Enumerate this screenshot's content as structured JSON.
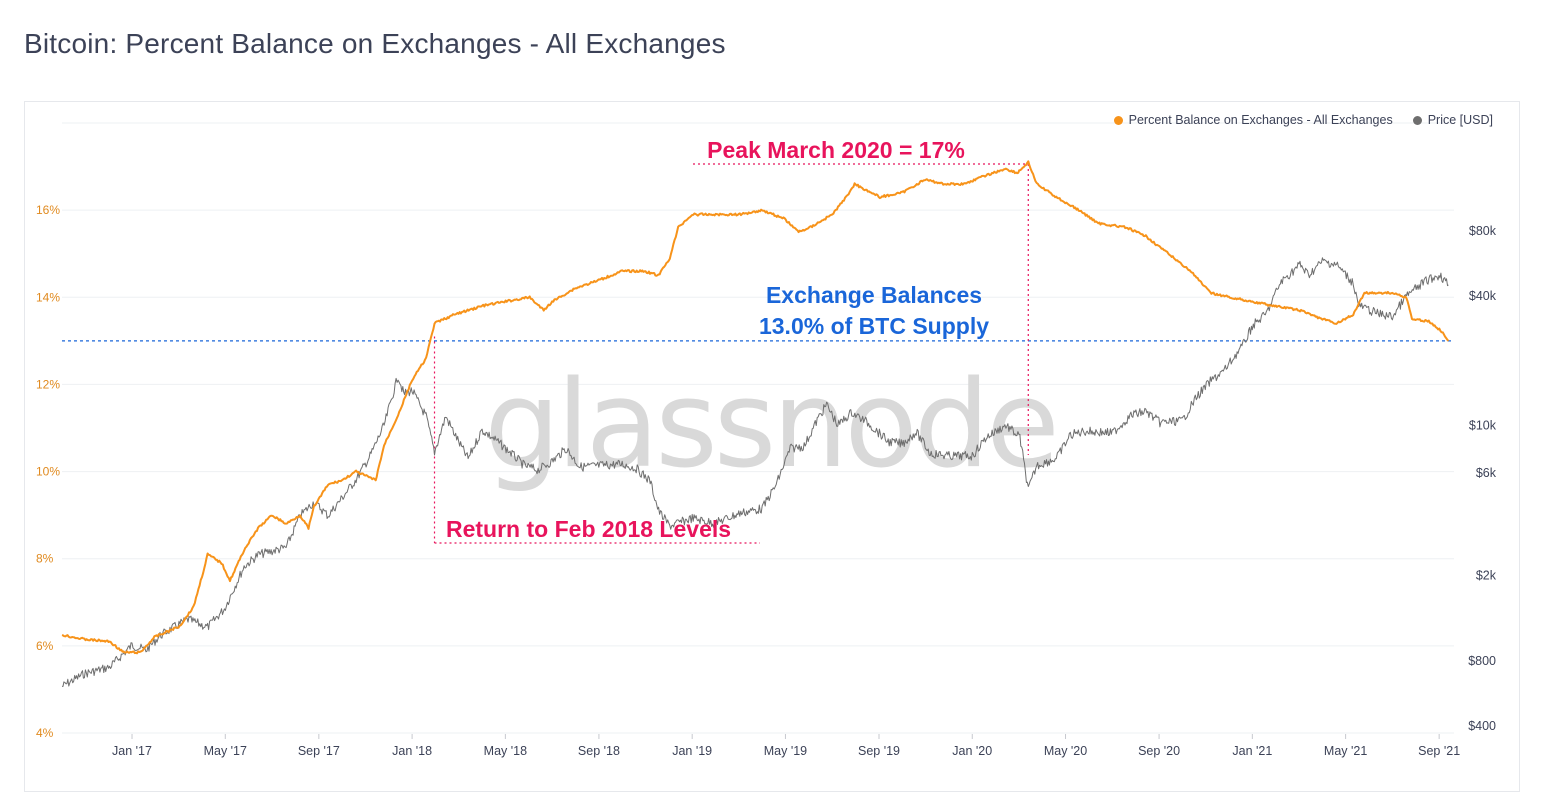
{
  "page": {
    "title": "Bitcoin: Percent Balance on Exchanges - All Exchanges",
    "watermark": "glassnode"
  },
  "legend": [
    {
      "label": "Percent Balance on Exchanges - All Exchanges",
      "color": "#f7931a"
    },
    {
      "label": "Price [USD]",
      "color": "#6e6e6e"
    }
  ],
  "annotations": {
    "peak": "Peak March 2020 = 17%",
    "exchange_line1": "Exchange Balances",
    "exchange_line2": "13.0% of BTC Supply",
    "return": "Return to Feb 2018 Levels"
  },
  "chart_data": {
    "type": "line",
    "title": "Bitcoin: Percent Balance on Exchanges - All Exchanges",
    "x_range": [
      2016.75,
      2021.72
    ],
    "x_ticks": [
      {
        "label": "Jan '17",
        "t": 2017.0
      },
      {
        "label": "May '17",
        "t": 2017.333
      },
      {
        "label": "Sep '17",
        "t": 2017.667
      },
      {
        "label": "Jan '18",
        "t": 2018.0
      },
      {
        "label": "May '18",
        "t": 2018.333
      },
      {
        "label": "Sep '18",
        "t": 2018.667
      },
      {
        "label": "Jan '19",
        "t": 2019.0
      },
      {
        "label": "May '19",
        "t": 2019.333
      },
      {
        "label": "Sep '19",
        "t": 2019.667
      },
      {
        "label": "Jan '20",
        "t": 2020.0
      },
      {
        "label": "May '20",
        "t": 2020.333
      },
      {
        "label": "Sep '20",
        "t": 2020.667
      },
      {
        "label": "Jan '21",
        "t": 2021.0
      },
      {
        "label": "May '21",
        "t": 2021.333
      },
      {
        "label": "Sep '21",
        "t": 2021.667
      }
    ],
    "y_left": {
      "range": [
        4,
        18
      ],
      "unit": "%",
      "ticks": [
        {
          "label": "4%",
          "v": 4
        },
        {
          "label": "6%",
          "v": 6
        },
        {
          "label": "8%",
          "v": 8
        },
        {
          "label": "10%",
          "v": 10
        },
        {
          "label": "12%",
          "v": 12
        },
        {
          "label": "14%",
          "v": 14
        },
        {
          "label": "16%",
          "v": 16
        }
      ]
    },
    "y_right": {
      "scale": "log",
      "ticks": [
        {
          "label": "$400",
          "v": 400
        },
        {
          "label": "$800",
          "v": 800
        },
        {
          "label": "$2k",
          "v": 2000
        },
        {
          "label": "$6k",
          "v": 6000
        },
        {
          "label": "$10k",
          "v": 10000
        },
        {
          "label": "$40k",
          "v": 40000
        },
        {
          "label": "$80k",
          "v": 80000
        }
      ]
    },
    "series": [
      {
        "name": "Percent Balance on Exchanges - All Exchanges",
        "axis": "left",
        "color": "#f7931a",
        "points": [
          [
            2016.75,
            6.25
          ],
          [
            2016.83,
            6.15
          ],
          [
            2016.92,
            6.1
          ],
          [
            2016.97,
            5.85
          ],
          [
            2017.03,
            5.85
          ],
          [
            2017.08,
            6.2
          ],
          [
            2017.17,
            6.45
          ],
          [
            2017.22,
            6.9
          ],
          [
            2017.25,
            7.6
          ],
          [
            2017.27,
            8.1
          ],
          [
            2017.32,
            7.9
          ],
          [
            2017.35,
            7.5
          ],
          [
            2017.4,
            8.2
          ],
          [
            2017.45,
            8.7
          ],
          [
            2017.5,
            9.0
          ],
          [
            2017.55,
            8.8
          ],
          [
            2017.6,
            9.0
          ],
          [
            2017.63,
            8.7
          ],
          [
            2017.65,
            9.2
          ],
          [
            2017.7,
            9.7
          ],
          [
            2017.75,
            9.8
          ],
          [
            2017.8,
            10.0
          ],
          [
            2017.87,
            9.8
          ],
          [
            2017.9,
            10.6
          ],
          [
            2017.95,
            11.3
          ],
          [
            2018.0,
            12.1
          ],
          [
            2018.05,
            12.6
          ],
          [
            2018.08,
            13.4
          ],
          [
            2018.15,
            13.6
          ],
          [
            2018.25,
            13.8
          ],
          [
            2018.33,
            13.9
          ],
          [
            2018.42,
            14.0
          ],
          [
            2018.47,
            13.7
          ],
          [
            2018.5,
            13.9
          ],
          [
            2018.58,
            14.2
          ],
          [
            2018.67,
            14.4
          ],
          [
            2018.75,
            14.6
          ],
          [
            2018.83,
            14.6
          ],
          [
            2018.88,
            14.5
          ],
          [
            2018.92,
            14.9
          ],
          [
            2018.95,
            15.6
          ],
          [
            2019.0,
            15.9
          ],
          [
            2019.08,
            15.9
          ],
          [
            2019.17,
            15.9
          ],
          [
            2019.25,
            16.0
          ],
          [
            2019.33,
            15.8
          ],
          [
            2019.38,
            15.5
          ],
          [
            2019.42,
            15.6
          ],
          [
            2019.5,
            15.9
          ],
          [
            2019.55,
            16.3
          ],
          [
            2019.58,
            16.6
          ],
          [
            2019.67,
            16.3
          ],
          [
            2019.75,
            16.4
          ],
          [
            2019.83,
            16.7
          ],
          [
            2019.9,
            16.6
          ],
          [
            2019.97,
            16.6
          ],
          [
            2020.05,
            16.8
          ],
          [
            2020.12,
            16.95
          ],
          [
            2020.16,
            16.85
          ],
          [
            2020.2,
            17.1
          ],
          [
            2020.23,
            16.6
          ],
          [
            2020.3,
            16.3
          ],
          [
            2020.38,
            16.0
          ],
          [
            2020.45,
            15.7
          ],
          [
            2020.55,
            15.6
          ],
          [
            2020.62,
            15.4
          ],
          [
            2020.7,
            15.0
          ],
          [
            2020.78,
            14.6
          ],
          [
            2020.85,
            14.1
          ],
          [
            2020.92,
            14.0
          ],
          [
            2021.0,
            13.9
          ],
          [
            2021.08,
            13.8
          ],
          [
            2021.17,
            13.7
          ],
          [
            2021.25,
            13.5
          ],
          [
            2021.3,
            13.4
          ],
          [
            2021.36,
            13.6
          ],
          [
            2021.4,
            14.1
          ],
          [
            2021.5,
            14.1
          ],
          [
            2021.55,
            14.0
          ],
          [
            2021.57,
            13.5
          ],
          [
            2021.63,
            13.45
          ],
          [
            2021.68,
            13.2
          ],
          [
            2021.7,
            13.0
          ]
        ]
      },
      {
        "name": "Price [USD]",
        "axis": "right",
        "color": "#6e6e6e",
        "points": [
          [
            2016.75,
            610
          ],
          [
            2016.83,
            700
          ],
          [
            2016.92,
            750
          ],
          [
            2017.0,
            950
          ],
          [
            2017.05,
            900
          ],
          [
            2017.1,
            1050
          ],
          [
            2017.15,
            1150
          ],
          [
            2017.2,
            1250
          ],
          [
            2017.27,
            1150
          ],
          [
            2017.33,
            1400
          ],
          [
            2017.4,
            2200
          ],
          [
            2017.45,
            2500
          ],
          [
            2017.5,
            2600
          ],
          [
            2017.55,
            2700
          ],
          [
            2017.6,
            3800
          ],
          [
            2017.65,
            4400
          ],
          [
            2017.7,
            3800
          ],
          [
            2017.75,
            4600
          ],
          [
            2017.8,
            5600
          ],
          [
            2017.85,
            7200
          ],
          [
            2017.9,
            10000
          ],
          [
            2017.95,
            17000
          ],
          [
            2017.97,
            14000
          ],
          [
            2018.0,
            14500
          ],
          [
            2018.05,
            11000
          ],
          [
            2018.08,
            7500
          ],
          [
            2018.12,
            11000
          ],
          [
            2018.17,
            8200
          ],
          [
            2018.2,
            7000
          ],
          [
            2018.25,
            9500
          ],
          [
            2018.3,
            8500
          ],
          [
            2018.35,
            7500
          ],
          [
            2018.4,
            6500
          ],
          [
            2018.45,
            6200
          ],
          [
            2018.5,
            6800
          ],
          [
            2018.55,
            7800
          ],
          [
            2018.6,
            6400
          ],
          [
            2018.67,
            6500
          ],
          [
            2018.75,
            6600
          ],
          [
            2018.8,
            6300
          ],
          [
            2018.85,
            5500
          ],
          [
            2018.88,
            4000
          ],
          [
            2018.92,
            3400
          ],
          [
            2019.0,
            3700
          ],
          [
            2019.08,
            3500
          ],
          [
            2019.17,
            3900
          ],
          [
            2019.25,
            4100
          ],
          [
            2019.3,
            5300
          ],
          [
            2019.35,
            7800
          ],
          [
            2019.4,
            8000
          ],
          [
            2019.45,
            10800
          ],
          [
            2019.48,
            12500
          ],
          [
            2019.52,
            10000
          ],
          [
            2019.57,
            11500
          ],
          [
            2019.63,
            10200
          ],
          [
            2019.7,
            8400
          ],
          [
            2019.75,
            8200
          ],
          [
            2019.8,
            9300
          ],
          [
            2019.85,
            7400
          ],
          [
            2019.92,
            7200
          ],
          [
            2020.0,
            7200
          ],
          [
            2020.05,
            8800
          ],
          [
            2020.12,
            10000
          ],
          [
            2020.17,
            8800
          ],
          [
            2020.2,
            5000
          ],
          [
            2020.23,
            6500
          ],
          [
            2020.3,
            7000
          ],
          [
            2020.35,
            9000
          ],
          [
            2020.4,
            9400
          ],
          [
            2020.5,
            9200
          ],
          [
            2020.57,
            11200
          ],
          [
            2020.62,
            11600
          ],
          [
            2020.67,
            10300
          ],
          [
            2020.75,
            10500
          ],
          [
            2020.8,
            13500
          ],
          [
            2020.85,
            16000
          ],
          [
            2020.9,
            18000
          ],
          [
            2020.97,
            24000
          ],
          [
            2021.0,
            29000
          ],
          [
            2021.05,
            33000
          ],
          [
            2021.1,
            46000
          ],
          [
            2021.17,
            56000
          ],
          [
            2021.2,
            50000
          ],
          [
            2021.25,
            58000
          ],
          [
            2021.3,
            56000
          ],
          [
            2021.36,
            46000
          ],
          [
            2021.38,
            36000
          ],
          [
            2021.45,
            33000
          ],
          [
            2021.5,
            32000
          ],
          [
            2021.55,
            40000
          ],
          [
            2021.62,
            47000
          ],
          [
            2021.67,
            50000
          ],
          [
            2021.7,
            45000
          ]
        ]
      }
    ],
    "reference_lines": [
      {
        "type": "horizontal",
        "axis": "left",
        "value": 13.0,
        "color": "#1a66d9"
      },
      {
        "type": "vertical",
        "t": 2018.08,
        "color": "#e8145c"
      },
      {
        "type": "vertical",
        "t": 2020.2,
        "color": "#e8145c"
      }
    ]
  }
}
